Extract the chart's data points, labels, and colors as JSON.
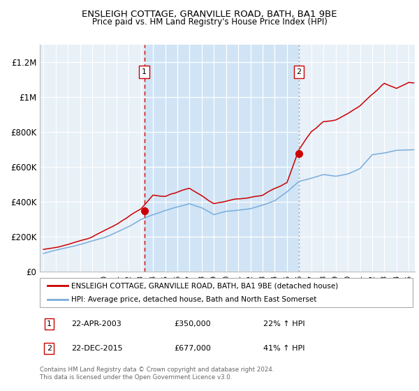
{
  "title1": "ENSLEIGH COTTAGE, GRANVILLE ROAD, BATH, BA1 9BE",
  "title2": "Price paid vs. HM Land Registry's House Price Index (HPI)",
  "ylabel_ticks": [
    "£0",
    "£200K",
    "£400K",
    "£600K",
    "£800K",
    "£1M",
    "£1.2M"
  ],
  "ylabel_values": [
    0,
    200000,
    400000,
    600000,
    800000,
    1000000,
    1200000
  ],
  "ylim": [
    0,
    1300000
  ],
  "xlim_start": 1994.7,
  "xlim_end": 2025.5,
  "transaction1_x": 2003.29,
  "transaction1_y": 350000,
  "transaction2_x": 2015.98,
  "transaction2_y": 677000,
  "sale_color": "#cc0000",
  "hpi_color": "#7aaddb",
  "bg_whole": "#e8f0f8",
  "bg_between": "#d0e4f5",
  "vline1_color": "#cc0000",
  "vline2_color": "#aaaaaa",
  "legend_line1": "ENSLEIGH COTTAGE, GRANVILLE ROAD, BATH, BA1 9BE (detached house)",
  "legend_line2": "HPI: Average price, detached house, Bath and North East Somerset",
  "note1_date": "22-APR-2003",
  "note1_price": "£350,000",
  "note1_hpi": "22% ↑ HPI",
  "note2_date": "22-DEC-2015",
  "note2_price": "£677,000",
  "note2_hpi": "41% ↑ HPI",
  "footer": "Contains HM Land Registry data © Crown copyright and database right 2024.\nThis data is licensed under the Open Government Licence v3.0."
}
